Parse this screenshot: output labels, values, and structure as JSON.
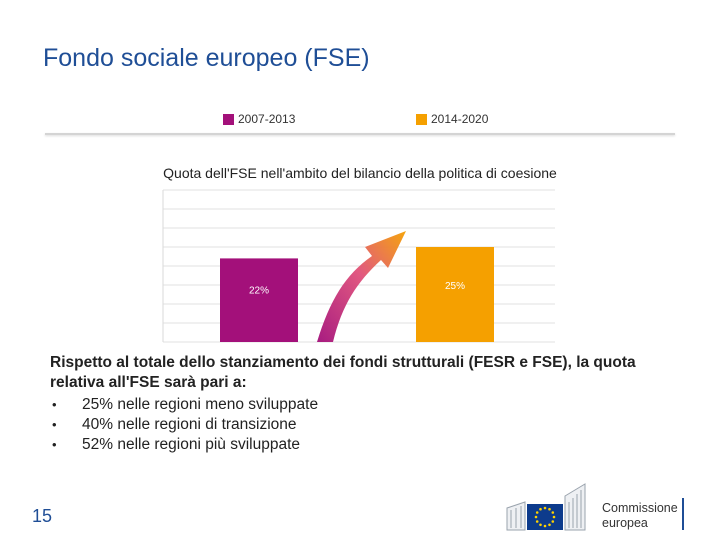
{
  "slide": {
    "title": "Fondo sociale europeo (FSE)",
    "page_number": "15"
  },
  "colors": {
    "series_2007_2013": "#a3107a",
    "series_2014_2020": "#f5a000",
    "title_blue": "#1f4e96"
  },
  "chart_data": {
    "type": "bar",
    "title": "Quota dell'FSE nell'ambito del bilancio della politica di coesione",
    "categories": [
      "2007-2013",
      "2014-2020"
    ],
    "series": [
      {
        "name": "2007-2013",
        "values": [
          22,
          null
        ],
        "label": "22%",
        "color": "#a3107a"
      },
      {
        "name": "2014-2020",
        "values": [
          null,
          25
        ],
        "label": "25%",
        "color": "#f5a000"
      }
    ],
    "ylim": [
      0,
      40
    ],
    "grid": true,
    "legend_position": "top",
    "annotation": "arrow from 2007-2013 bar to 2014-2020 bar"
  },
  "body": {
    "lead": "Rispetto al totale dello stanziamento dei fondi strutturali (FESR e FSE), la quota relativa all'FSE sarà pari a:",
    "bullets": [
      "25% nelle regioni meno sviluppate",
      "40% nelle regioni di transizione",
      "52% nelle regioni più sviluppate"
    ]
  },
  "logo": {
    "line1": "Commissione",
    "line2": "europea",
    "icon": "eu-flag-icon"
  }
}
